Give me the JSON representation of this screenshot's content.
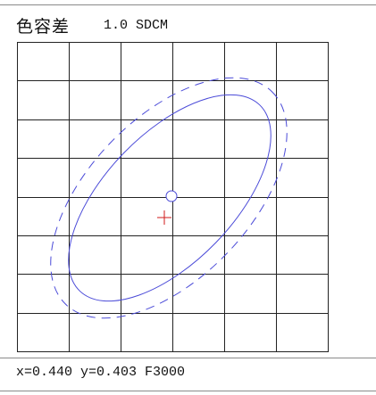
{
  "header": {
    "title": "色容差",
    "tolerance_value": "1.0 SDCM"
  },
  "plot": {
    "grid_columns": 6,
    "grid_rows": 8,
    "colors": {
      "grid": "#222222",
      "ellipse": "#4a4ad8",
      "target_cross": "#d11a1a",
      "center_marker": "#4a4ad8"
    }
  },
  "status": {
    "readout": "x=0.440 y=0.403 F3000"
  }
}
